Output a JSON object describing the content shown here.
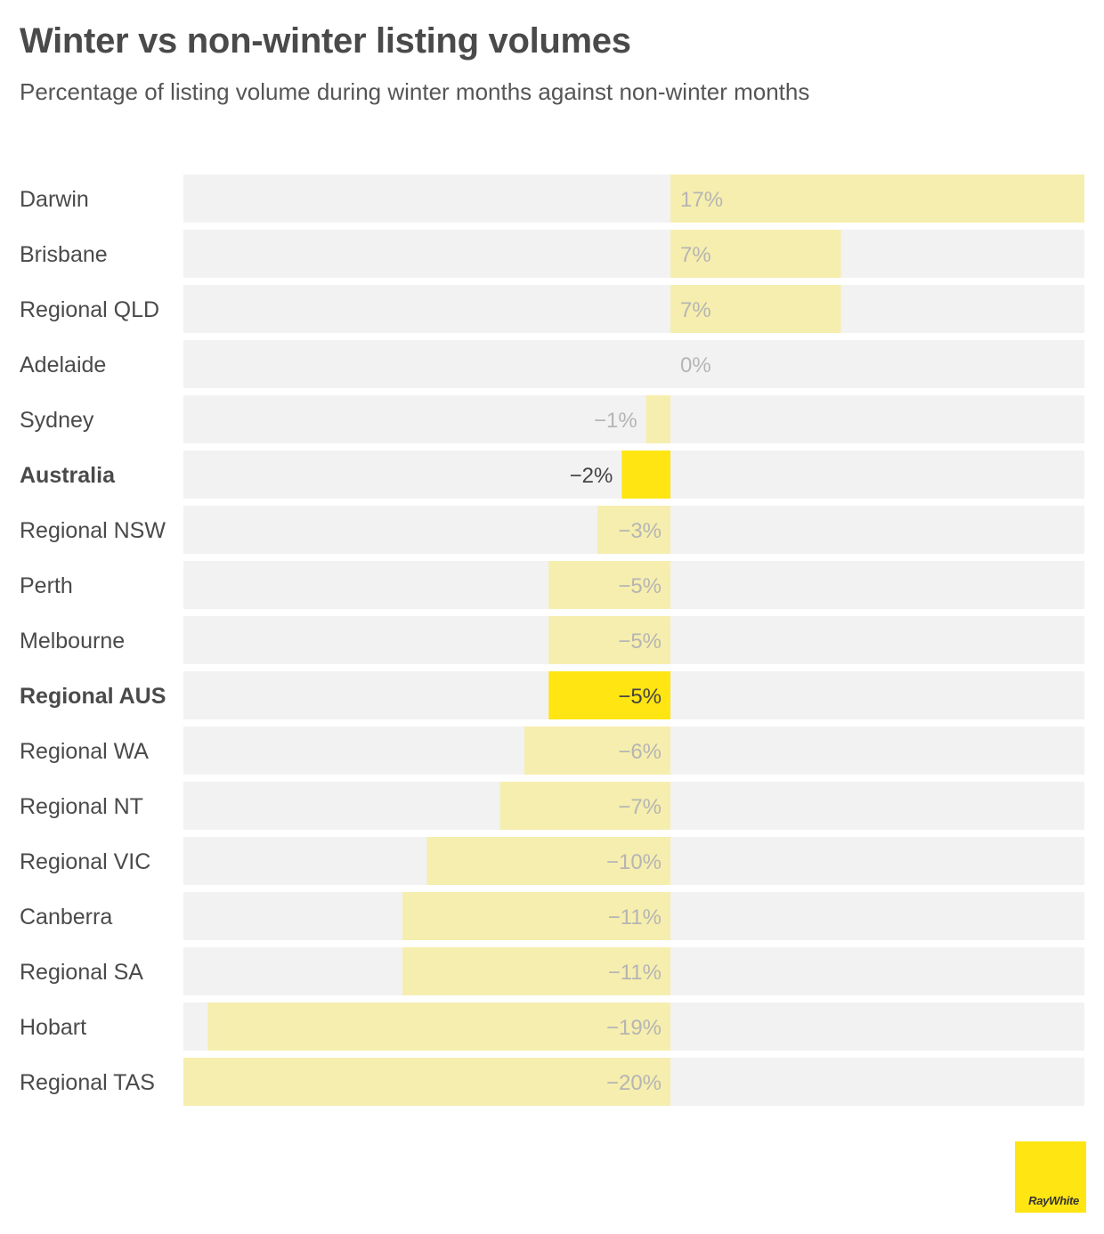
{
  "header": {
    "title": "Winter vs non-winter listing volumes",
    "subtitle": "Percentage of listing volume during winter months against non-winter months"
  },
  "logo": {
    "text": "RayWhite"
  },
  "colors": {
    "track": "#f2f2f2",
    "bar_light": "#f6eeae",
    "bar_highlight": "#ffe512",
    "label_light": "#b5b5b5",
    "label_dark": "#444444",
    "category_text": "#4a4a4a"
  },
  "chart_data": {
    "type": "bar",
    "orientation": "horizontal",
    "title": "Winter vs non-winter listing volumes",
    "subtitle": "Percentage of listing volume during winter months against non-winter months",
    "xlim": [
      -20,
      17
    ],
    "grid": false,
    "unit": "%",
    "categories": [
      "Darwin",
      "Brisbane",
      "Regional QLD",
      "Adelaide",
      "Sydney",
      "Australia",
      "Regional NSW",
      "Perth",
      "Melbourne",
      "Regional AUS",
      "Regional WA",
      "Regional NT",
      "Regional VIC",
      "Canberra",
      "Regional SA",
      "Hobart",
      "Regional TAS"
    ],
    "values": [
      17,
      7,
      7,
      0,
      -1,
      -2,
      -3,
      -5,
      -5,
      -5,
      -6,
      -7,
      -10,
      -11,
      -11,
      -19,
      -20
    ],
    "value_labels": [
      "17%",
      "7%",
      "7%",
      "0%",
      "−1%",
      "−2%",
      "−3%",
      "−5%",
      "−5%",
      "−5%",
      "−6%",
      "−7%",
      "−10%",
      "−11%",
      "−11%",
      "−19%",
      "−20%"
    ],
    "highlighted": [
      "Australia",
      "Regional AUS"
    ]
  }
}
